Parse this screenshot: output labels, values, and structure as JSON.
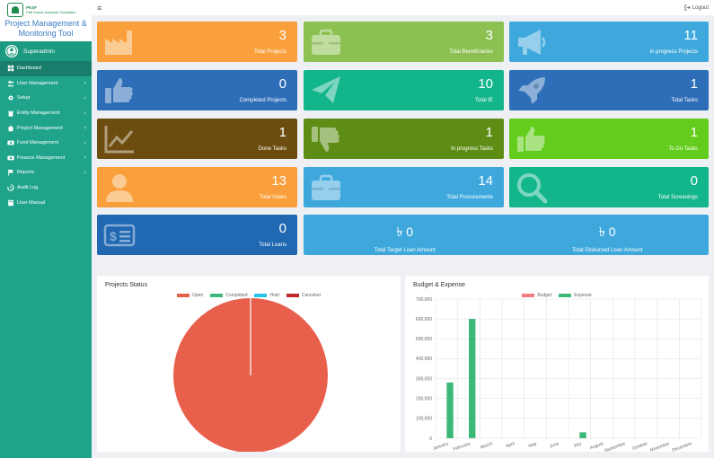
{
  "brand": {
    "org_name": "PKSF",
    "org_full": "Palli Karma-Sahayak Foundation",
    "title_line1": "Project Management &",
    "title_line2": "Monitoring Tool"
  },
  "user": {
    "name": "Superadmin"
  },
  "menu": [
    {
      "label": "Dashboard",
      "icon": "dashboard-icon",
      "chevron": false
    },
    {
      "label": "User Management",
      "icon": "users-icon",
      "chevron": true
    },
    {
      "label": "Setup",
      "icon": "gear-icon",
      "chevron": true
    },
    {
      "label": "Entity Management",
      "icon": "clipboard-icon",
      "chevron": true
    },
    {
      "label": "Project Management",
      "icon": "home-icon",
      "chevron": true
    },
    {
      "label": "Fund Management",
      "icon": "money-icon",
      "chevron": true
    },
    {
      "label": "Finance Management",
      "icon": "money-icon",
      "chevron": true
    },
    {
      "label": "Reports",
      "icon": "flag-icon",
      "chevron": true
    },
    {
      "label": "Audit Log",
      "icon": "history-icon",
      "chevron": false
    },
    {
      "label": "User Manual",
      "icon": "book-icon",
      "chevron": false
    }
  ],
  "topbar": {
    "menu_icon": "≡",
    "logout": "Logout"
  },
  "cards": [
    {
      "value": "3",
      "label": "Total Projects",
      "icon": "factory-icon"
    },
    {
      "value": "3",
      "label": "Total Beneficiaries",
      "icon": "briefcase-icon"
    },
    {
      "value": "11",
      "label": "In progress Projects",
      "icon": "megaphone-icon"
    },
    {
      "value": "0",
      "label": "Completed Projects",
      "icon": "thumbs-up-icon"
    },
    {
      "value": "10",
      "label": "Total IE",
      "icon": "paper-plane-icon"
    },
    {
      "value": "1",
      "label": "Total Tasks",
      "icon": "rocket-icon"
    },
    {
      "value": "1",
      "label": "Done Tasks",
      "icon": "line-chart-icon"
    },
    {
      "value": "1",
      "label": "In progress Tasks",
      "icon": "thumbs-down-icon"
    },
    {
      "value": "1",
      "label": "To Do Tasks",
      "icon": "thumbs-up-icon"
    },
    {
      "value": "13",
      "label": "Total Users",
      "icon": "user-icon"
    },
    {
      "value": "14",
      "label": "Total Procurements",
      "icon": "briefcase-icon"
    },
    {
      "value": "0",
      "label": "Total Screenings",
      "icon": "search-icon"
    },
    {
      "value": "0",
      "label": "Total Loans",
      "icon": "money-bill-icon"
    }
  ],
  "loan_summary": {
    "target_value": "৳ 0",
    "target_label": "Total Target Loan Amount",
    "disbursed_value": "৳ 0",
    "disbursed_label": "Total Disbursed Loan Amount"
  },
  "projects_status": {
    "title": "Projects Status",
    "legend": [
      {
        "label": "Open",
        "color": "#e8604c"
      },
      {
        "label": "Completed",
        "color": "#3cba7c"
      },
      {
        "label": "Hold",
        "color": "#27c4e8"
      },
      {
        "label": "Canceled",
        "color": "#c0282b"
      }
    ]
  },
  "budget_expense": {
    "title": "Budget & Expense",
    "legend": [
      {
        "label": "Budget",
        "color": "#f47c7c"
      },
      {
        "label": "Expense",
        "color": "#3cb878"
      }
    ]
  },
  "chart_data": [
    {
      "type": "pie",
      "title": "Projects Status",
      "categories": [
        "Open",
        "Completed",
        "Hold",
        "Canceled"
      ],
      "values": [
        3,
        0,
        0,
        0
      ],
      "colors": [
        "#e8604c",
        "#3cba7c",
        "#27c4e8",
        "#c0282b"
      ]
    },
    {
      "type": "bar",
      "title": "Budget & Expense",
      "categories": [
        "January",
        "February",
        "March",
        "April",
        "May",
        "June",
        "July",
        "August",
        "September",
        "October",
        "November",
        "December"
      ],
      "series": [
        {
          "name": "Budget",
          "values": [
            0,
            0,
            0,
            0,
            0,
            0,
            0,
            0,
            0,
            0,
            0,
            0
          ],
          "color": "#f47c7c"
        },
        {
          "name": "Expense",
          "values": [
            280000,
            600000,
            0,
            0,
            0,
            0,
            30000,
            0,
            0,
            0,
            0,
            0
          ],
          "color": "#3cb878"
        }
      ],
      "ylim": [
        0,
        700000
      ],
      "yticks": [
        "0",
        "100,000",
        "200,000",
        "300,000",
        "400,000",
        "500,000",
        "600,000",
        "700,000"
      ],
      "ytick_values": [
        0,
        100000,
        200000,
        300000,
        400000,
        500000,
        600000,
        700000
      ]
    }
  ]
}
